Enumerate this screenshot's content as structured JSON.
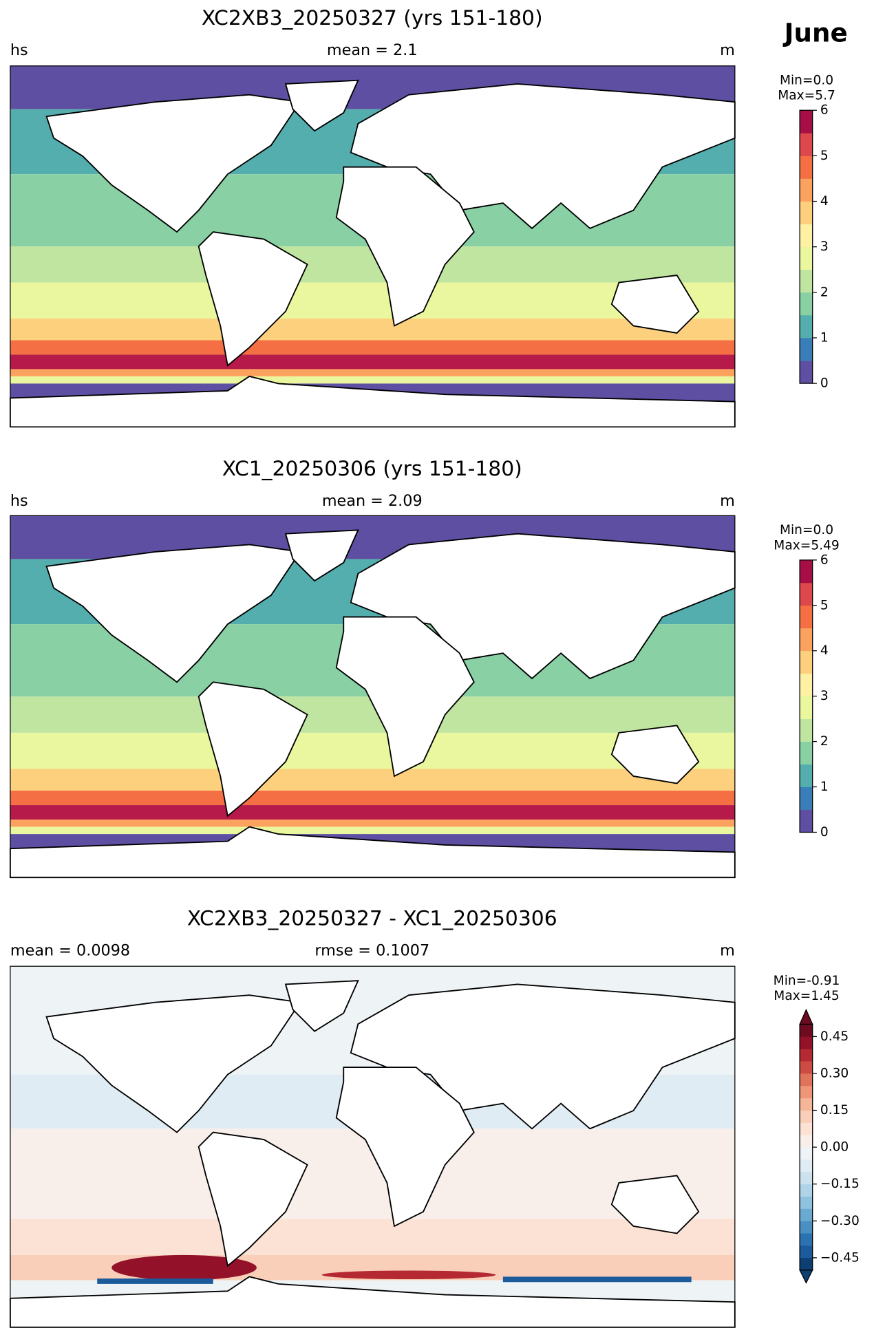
{
  "header": {
    "title": "June"
  },
  "panels": [
    {
      "title": "XC2XB3_20250327 (yrs 151-180)",
      "left": "hs",
      "center": "mean = 2.1",
      "right": "m",
      "colorbar": {
        "min": "Min=0.0",
        "max": "Max=5.7",
        "lim": [
          0,
          6
        ],
        "ticks": [
          0,
          1,
          2,
          3,
          4,
          5,
          6
        ],
        "colors": [
          "#5e4fa2",
          "#3a7eb8",
          "#54aead",
          "#89d0a4",
          "#bfe5a0",
          "#eaf79e",
          "#fef0a5",
          "#fdd07e",
          "#fba35e",
          "#f47044",
          "#dc484c",
          "#a50f46"
        ]
      }
    },
    {
      "title": "XC1_20250306 (yrs 151-180)",
      "left": "hs",
      "center": "mean = 2.09",
      "right": "m",
      "colorbar": {
        "min": "Min=0.0",
        "max": "Max=5.49",
        "lim": [
          0,
          6
        ],
        "ticks": [
          0,
          1,
          2,
          3,
          4,
          5,
          6
        ],
        "colors": [
          "#5e4fa2",
          "#3a7eb8",
          "#54aead",
          "#89d0a4",
          "#bfe5a0",
          "#eaf79e",
          "#fef0a5",
          "#fdd07e",
          "#fba35e",
          "#f47044",
          "#dc484c",
          "#a50f46"
        ]
      }
    },
    {
      "title": "XC2XB3_20250327 - XC1_20250306",
      "left": "mean = 0.0098",
      "center": "rmse = 0.1007",
      "right": "m",
      "colorbar": {
        "min": "Min=-0.91",
        "max": "Max=1.45",
        "lim": [
          -0.5,
          0.5
        ],
        "extend": "both",
        "ticks": [
          {
            "value": -0.45,
            "label": "−0.45"
          },
          {
            "value": -0.3,
            "label": "−0.30"
          },
          {
            "value": -0.15,
            "label": "−0.15"
          },
          {
            "value": 0,
            "label": "0.00"
          },
          0.15,
          {
            "value": 0.3,
            "label": "0.30"
          },
          0.45
        ],
        "colors": [
          "#0d3f73",
          "#1b5a9b",
          "#2c72b2",
          "#4a90c2",
          "#6aa9d0",
          "#8fc2de",
          "#b0d4e7",
          "#cbe2ee",
          "#dfecf3",
          "#eef3f6",
          "#f8efea",
          "#fbe2d4",
          "#f9cfb9",
          "#f5b598",
          "#ee9677",
          "#e0735c",
          "#cc4c44",
          "#b42932",
          "#93122a",
          "#6e0b21"
        ]
      }
    }
  ]
}
